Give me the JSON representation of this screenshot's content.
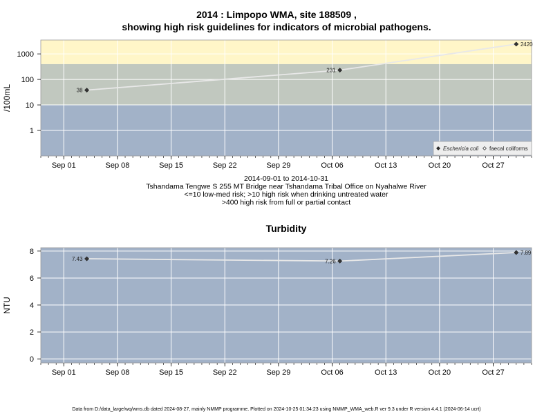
{
  "footer": "Data from D:/data_large/wq/wms.db dated 2024-08-27, mainly NMMP programme. Plotted on 2024-10-25 01:34:23 using NMMP_WMA_web.R ver 9.3 under R version 4.4.1 (2024-06-14 ucrt)",
  "colors": {
    "low_band": "#a2b2c8",
    "mid_band": "#c1c8bf",
    "high_band": "#fff6c8",
    "point": "#333333",
    "line": "#e8e8e8",
    "grid": "#ffffff",
    "legend_bg": "#eeeeee"
  },
  "chart_data": [
    {
      "type": "line",
      "title": "2014 : Limpopo WMA, site 188509 ,",
      "subtitle": "showing high risk guidelines for indicators of microbial pathogens.",
      "ylabel": "/100mL",
      "y_scale": "log",
      "ylim": [
        0.1,
        3500
      ],
      "yticks": [
        1,
        10,
        100,
        1000
      ],
      "ytick_labels": [
        "1",
        "10",
        "100",
        "1000"
      ],
      "xlim": [
        "2014-08-29",
        "2014-11-01"
      ],
      "xticks": [
        "2014-09-01",
        "2014-09-08",
        "2014-09-15",
        "2014-09-22",
        "2014-09-29",
        "2014-10-06",
        "2014-10-13",
        "2014-10-20",
        "2014-10-27"
      ],
      "xtick_labels": [
        "Sep 01",
        "Sep 08",
        "Sep 15",
        "Sep 22",
        "Sep 29",
        "Oct 06",
        "Oct 13",
        "Oct 20",
        "Oct 27"
      ],
      "bands": [
        {
          "from": 0.1,
          "to": 10
        },
        {
          "from": 10,
          "to": 400
        },
        {
          "from": 400,
          "to": 3500
        }
      ],
      "series": [
        {
          "name": "Eschericia coli",
          "marker": "filled-diamond",
          "x": [
            "2014-09-04",
            "2014-10-07",
            "2014-10-30"
          ],
          "y": [
            38,
            231,
            2420
          ],
          "labels": [
            "38",
            "231",
            "2420"
          ]
        }
      ],
      "legend": {
        "position": "bottom-right",
        "entries": [
          {
            "name": "Eschericia coli",
            "marker": "filled-diamond",
            "italic": true
          },
          {
            "name": "faecal coliforms",
            "marker": "open-diamond",
            "italic": false
          }
        ]
      },
      "caption": [
        "2014-09-01 to 2014-10-31",
        "Tshandama Tengwe S 255 MT Bridge near Tshandama Tribal Office on Nyahalwe River",
        "<=10 low-med risk; >10 high risk when drinking untreated water",
        ">400 high risk from full or partial contact"
      ]
    },
    {
      "type": "line",
      "title": "Turbidity",
      "ylabel": "NTU",
      "ylim": [
        -0.3,
        8.25
      ],
      "yticks": [
        0,
        2,
        4,
        6,
        8
      ],
      "ytick_labels": [
        "0",
        "2",
        "4",
        "6",
        "8"
      ],
      "xlim": [
        "2014-08-29",
        "2014-11-01"
      ],
      "xticks": [
        "2014-09-01",
        "2014-09-08",
        "2014-09-15",
        "2014-09-22",
        "2014-09-29",
        "2014-10-06",
        "2014-10-13",
        "2014-10-20",
        "2014-10-27"
      ],
      "xtick_labels": [
        "Sep 01",
        "Sep 08",
        "Sep 15",
        "Sep 22",
        "Sep 29",
        "Oct 06",
        "Oct 13",
        "Oct 20",
        "Oct 27"
      ],
      "series": [
        {
          "marker": "filled-diamond",
          "x": [
            "2014-09-04",
            "2014-10-07",
            "2014-10-30"
          ],
          "y": [
            7.43,
            7.26,
            7.89
          ],
          "labels": [
            "7.43",
            "7.26",
            "7.89"
          ]
        }
      ]
    }
  ]
}
